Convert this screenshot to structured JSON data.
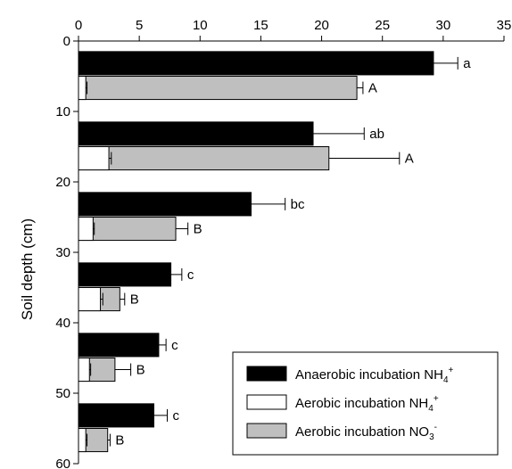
{
  "chart_data": {
    "type": "bar",
    "orientation": "horizontal",
    "title": "",
    "xlabel": "",
    "ylabel": "Soil depth (cm)",
    "x_axis_position": "top",
    "xlim": [
      0,
      35
    ],
    "ylim": [
      0,
      60
    ],
    "x_ticks": [
      0,
      5,
      10,
      15,
      20,
      25,
      30,
      35
    ],
    "y_ticks": [
      0,
      10,
      20,
      30,
      40,
      50,
      60
    ],
    "grid": false,
    "legend_position": "bottom-right",
    "groups": [
      {
        "anaerobic_nh4": 29.2,
        "anaerobic_nh4_err": 2.0,
        "anaerobic_nh4_letter": "a",
        "aerobic_nh4": 0.6,
        "aerobic_nh4_err": 0.1,
        "aerobic_no3": 22.3,
        "aerobic_no3_err": 0.5,
        "aerobic_no3_letter": "A"
      },
      {
        "anaerobic_nh4": 19.3,
        "anaerobic_nh4_err": 4.2,
        "anaerobic_nh4_letter": "ab",
        "aerobic_nh4": 2.5,
        "aerobic_nh4_err": 0.2,
        "aerobic_no3": 18.1,
        "aerobic_no3_err": 5.8,
        "aerobic_no3_letter": "A"
      },
      {
        "anaerobic_nh4": 14.2,
        "anaerobic_nh4_err": 2.8,
        "anaerobic_nh4_letter": "bc",
        "aerobic_nh4": 1.2,
        "aerobic_nh4_err": 0.1,
        "aerobic_no3": 6.8,
        "aerobic_no3_err": 1.0,
        "aerobic_no3_letter": "B"
      },
      {
        "anaerobic_nh4": 7.6,
        "anaerobic_nh4_err": 0.9,
        "anaerobic_nh4_letter": "c",
        "aerobic_nh4": 1.8,
        "aerobic_nh4_err": 0.2,
        "aerobic_no3": 1.6,
        "aerobic_no3_err": 0.4,
        "aerobic_no3_letter": "B"
      },
      {
        "anaerobic_nh4": 6.6,
        "anaerobic_nh4_err": 0.6,
        "anaerobic_nh4_letter": "c",
        "aerobic_nh4": 0.9,
        "aerobic_nh4_err": 0.1,
        "aerobic_no3": 2.1,
        "aerobic_no3_err": 1.3,
        "aerobic_no3_letter": "B"
      },
      {
        "anaerobic_nh4": 6.2,
        "anaerobic_nh4_err": 1.1,
        "anaerobic_nh4_letter": "c",
        "aerobic_nh4": 0.6,
        "aerobic_nh4_err": 0.1,
        "aerobic_no3": 1.8,
        "aerobic_no3_err": 0.2,
        "aerobic_no3_letter": "B"
      }
    ],
    "series": [
      {
        "key": "anaerobic_nh4",
        "name": "Anaerobic incubation NH4+",
        "name_prefix": "Anaerobic incubation NH",
        "ion_sub": "4",
        "ion_sup": "+",
        "color": "#000000"
      },
      {
        "key": "aerobic_nh4",
        "name": "Aerobic incubation NH4+",
        "name_prefix": "Aerobic incubation NH",
        "ion_sub": "4",
        "ion_sup": "+",
        "color": "#ffffff"
      },
      {
        "key": "aerobic_no3",
        "name": "Aerobic incubation NO3-",
        "name_prefix": "Aerobic incubation NO",
        "ion_sub": "3",
        "ion_sup": "-",
        "color": "#bfbfbf"
      }
    ]
  }
}
